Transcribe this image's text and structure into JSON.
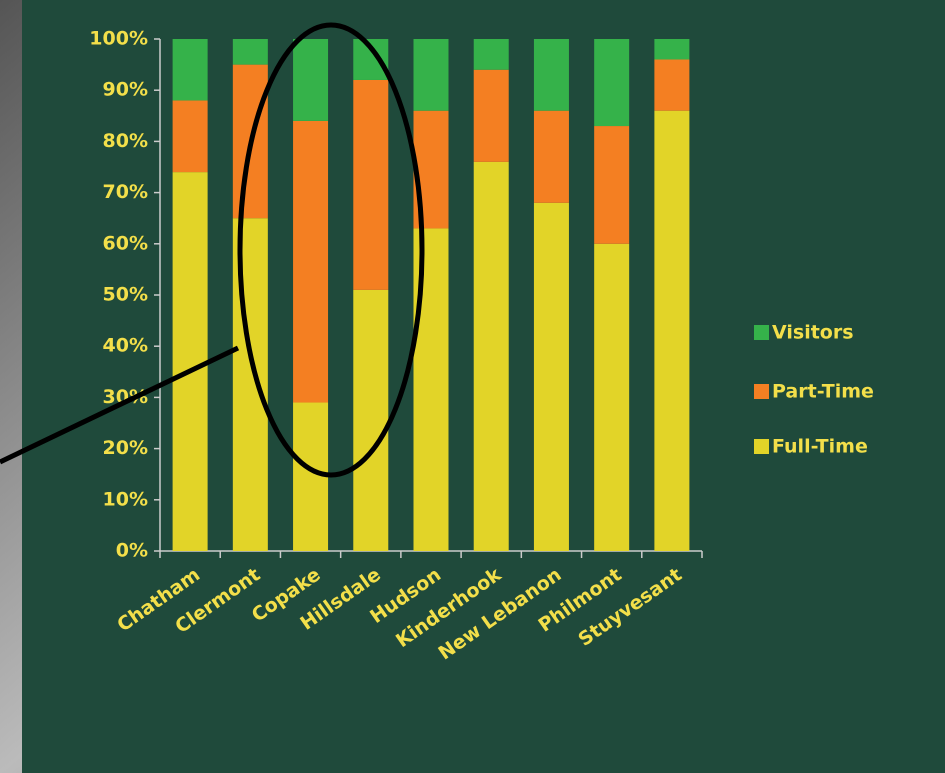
{
  "chart_data": {
    "type": "stacked_bar",
    "categories": [
      "Chatham",
      "Clermont",
      "Copake",
      "Hillsdale",
      "Hudson",
      "Kinderhook",
      "New Lebanon",
      "Philmont",
      "Stuyvesant"
    ],
    "series": [
      {
        "name": "Full-Time",
        "color": "#e2d428",
        "values": [
          74,
          65,
          29,
          51,
          63,
          76,
          68,
          60,
          86
        ]
      },
      {
        "name": "Part-Time",
        "color": "#f47f22",
        "values": [
          14,
          30,
          55,
          41,
          23,
          18,
          18,
          23,
          10
        ]
      },
      {
        "name": "Visitors",
        "color": "#35b24a",
        "values": [
          12,
          5,
          16,
          8,
          14,
          6,
          14,
          17,
          4
        ]
      }
    ],
    "ylim": [
      0,
      100
    ],
    "yticks": [
      {
        "value": 0,
        "label": "0%"
      },
      {
        "value": 10,
        "label": "10%"
      },
      {
        "value": 20,
        "label": "20%"
      },
      {
        "value": 30,
        "label": "30%"
      },
      {
        "value": 40,
        "label": "40%"
      },
      {
        "value": 50,
        "label": "50%"
      },
      {
        "value": 60,
        "label": "60%"
      },
      {
        "value": 70,
        "label": "70%"
      },
      {
        "value": 80,
        "label": "80%"
      },
      {
        "value": 90,
        "label": "90%"
      },
      {
        "value": 100,
        "label": "100%"
      }
    ],
    "legend": "right"
  }
}
